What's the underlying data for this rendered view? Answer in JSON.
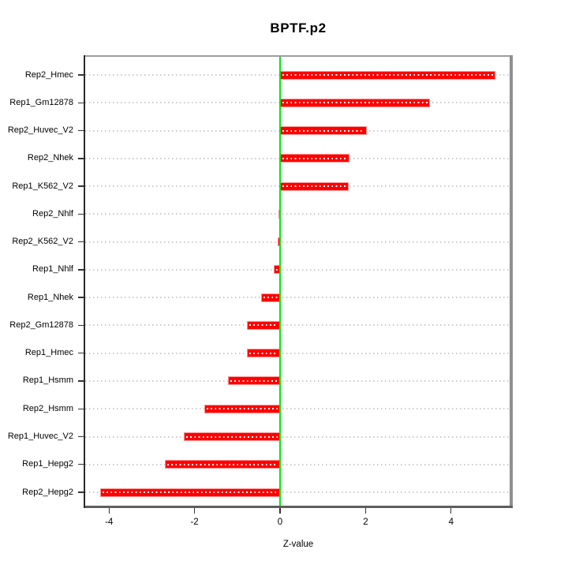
{
  "chart_data": {
    "type": "bar",
    "orientation": "horizontal",
    "title": "BPTF.p2",
    "xlabel": "Z-value",
    "ylabel": "",
    "categories": [
      "Rep2_Hmec",
      "Rep1_Gm12878",
      "Rep2_Huvec_V2",
      "Rep2_Nhek",
      "Rep1_K562_V2",
      "Rep2_Nhlf",
      "Rep2_K562_V2",
      "Rep1_Nhlf",
      "Rep1_Nhek",
      "Rep2_Gm12878",
      "Rep1_Hmec",
      "Rep1_Hsmm",
      "Rep2_Hsmm",
      "Rep1_Huvec_V2",
      "Rep1_Hepg2",
      "Rep2_Hepg2"
    ],
    "values": [
      5.03,
      3.51,
      2.03,
      1.62,
      1.6,
      -0.04,
      -0.06,
      -0.14,
      -0.45,
      -0.77,
      -0.78,
      -1.21,
      -1.77,
      -2.26,
      -2.69,
      -4.21
    ],
    "xticks": [
      -4,
      -2,
      0,
      2,
      4
    ],
    "xtick_labels": [
      "-4",
      "-2",
      "0",
      "2",
      "4"
    ],
    "xlim": [
      -4.6,
      5.45
    ],
    "grid": "dotted-horizontal-gray",
    "legend": "none",
    "colors": {
      "bar_fill": "#fe0000",
      "bar_border": "#ff8f8f",
      "bar_inner_dots": "#ffffff",
      "zero_line": "#00e80b",
      "grid_line": "#cbcbcb",
      "panel_border_top_right": "#8f8f8f",
      "panel_border_bottom": "#5f5f5f",
      "axis_line": "#2a2a2a",
      "text": "#000000"
    }
  }
}
